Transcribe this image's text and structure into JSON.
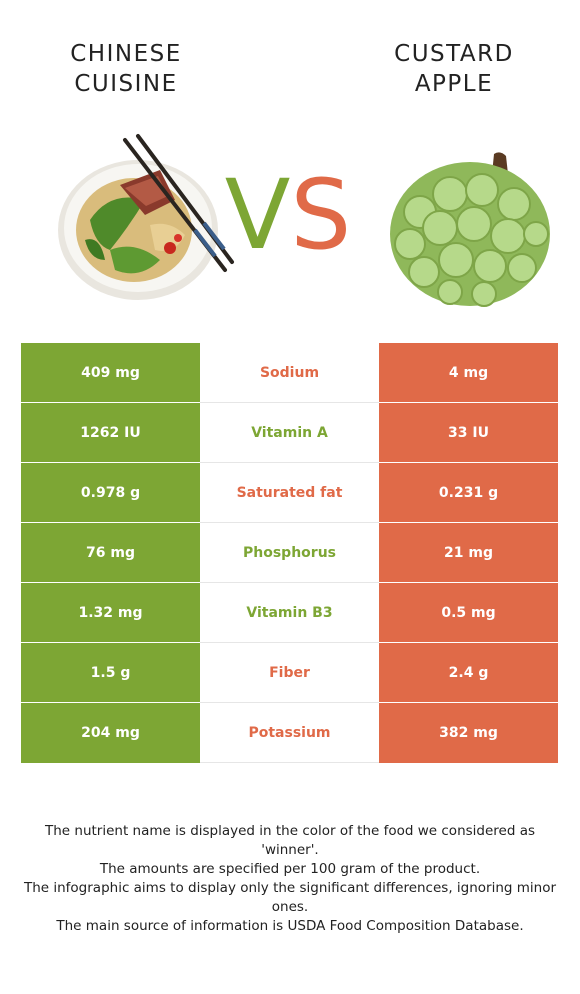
{
  "left_food": {
    "line1": "CHINESE",
    "line2": "CUISINE"
  },
  "right_food": {
    "line1": "CUSTARD",
    "line2": "APPLE"
  },
  "vs": {
    "v": "V",
    "s": "S"
  },
  "colors": {
    "left": "#7da634",
    "right": "#e06a48"
  },
  "rows": [
    {
      "left": "409 mg",
      "nutrient": "Sodium",
      "winner": "right",
      "right": "4 mg"
    },
    {
      "left": "1262 IU",
      "nutrient": "Vitamin A",
      "winner": "left",
      "right": "33 IU"
    },
    {
      "left": "0.978 g",
      "nutrient": "Saturated fat",
      "winner": "right",
      "right": "0.231 g"
    },
    {
      "left": "76 mg",
      "nutrient": "Phosphorus",
      "winner": "left",
      "right": "21 mg"
    },
    {
      "left": "1.32 mg",
      "nutrient": "Vitamin B3",
      "winner": "left",
      "right": "0.5 mg"
    },
    {
      "left": "1.5 g",
      "nutrient": "Fiber",
      "winner": "right",
      "right": "2.4 g"
    },
    {
      "left": "204 mg",
      "nutrient": "Potassium",
      "winner": "right",
      "right": "382 mg"
    }
  ],
  "notes": [
    "The nutrient name is displayed in the color of the food we considered as 'winner'.",
    "The amounts are specified per 100 gram of the product.",
    "The infographic aims to display only the significant differences, ignoring minor ones.",
    "The main source of information is USDA Food Composition Database."
  ]
}
